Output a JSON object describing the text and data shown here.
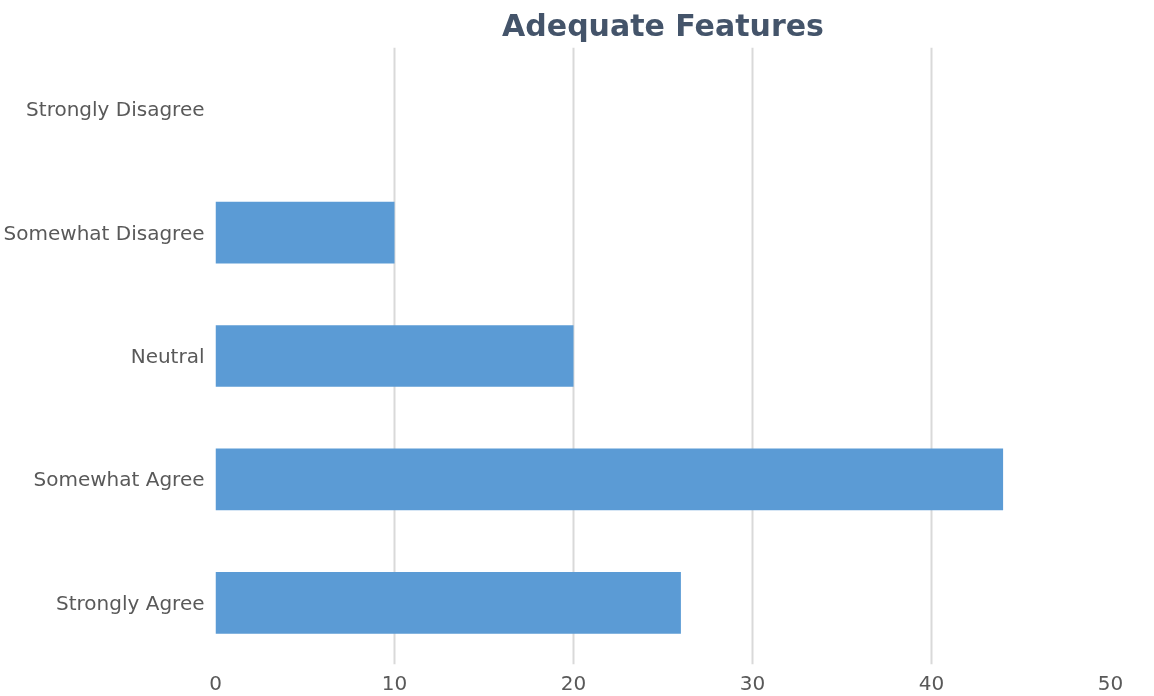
{
  "chart_data": {
    "type": "bar",
    "orientation": "horizontal",
    "title": "Adequate Features",
    "categories": [
      "Strongly Disagree",
      "Somewhat Disagree",
      "Neutral",
      "Somewhat Agree",
      "Strongly Agree"
    ],
    "values": [
      0,
      10,
      20,
      44,
      26
    ],
    "color": "#5b9bd5",
    "xlim": [
      0,
      50
    ],
    "xticks": [
      0,
      10,
      20,
      30,
      40,
      50
    ],
    "grid": "x"
  }
}
